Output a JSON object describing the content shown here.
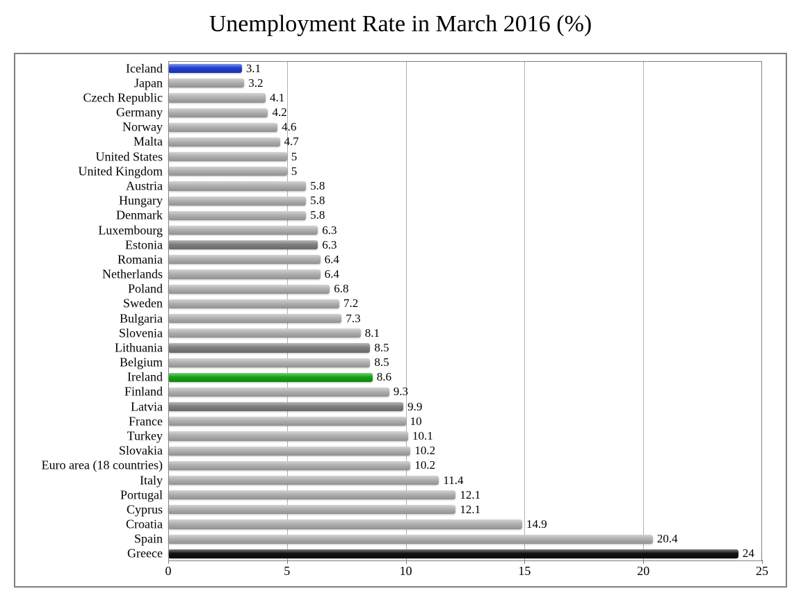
{
  "chart": {
    "type": "bar-horizontal",
    "title": "Unemployment Rate in March 2016 (%)",
    "title_fontsize": 34,
    "font_family": "Georgia, 'Times New Roman', serif",
    "background_color": "#ffffff",
    "outer_border_color": "#7f7f7f",
    "plot_border_color": "#7f7f7f",
    "grid_color": "#b0b0b0",
    "ylabel_fontsize": 18,
    "value_label_fontsize": 17,
    "xtick_fontsize": 18,
    "x": {
      "min": 0,
      "max": 25,
      "tick_step": 5,
      "ticks": [
        0,
        5,
        10,
        15,
        20,
        25
      ]
    },
    "bars": [
      {
        "label": "Iceland",
        "value": 3.1,
        "color": "#1f3fd0"
      },
      {
        "label": "Japan",
        "value": 3.2,
        "color": "#b0b0b0"
      },
      {
        "label": "Czech Republic",
        "value": 4.1,
        "color": "#b0b0b0"
      },
      {
        "label": "Germany",
        "value": 4.2,
        "color": "#b0b0b0"
      },
      {
        "label": "Norway",
        "value": 4.6,
        "color": "#b0b0b0"
      },
      {
        "label": "Malta",
        "value": 4.7,
        "color": "#b0b0b0"
      },
      {
        "label": "United States",
        "value": 5,
        "color": "#b0b0b0"
      },
      {
        "label": "United Kingdom",
        "value": 5,
        "color": "#b0b0b0"
      },
      {
        "label": "Austria",
        "value": 5.8,
        "color": "#b0b0b0"
      },
      {
        "label": "Hungary",
        "value": 5.8,
        "color": "#b0b0b0"
      },
      {
        "label": "Denmark",
        "value": 5.8,
        "color": "#b0b0b0"
      },
      {
        "label": "Luxembourg",
        "value": 6.3,
        "color": "#b0b0b0"
      },
      {
        "label": "Estonia",
        "value": 6.3,
        "color": "#7f7f7f"
      },
      {
        "label": "Romania",
        "value": 6.4,
        "color": "#b0b0b0"
      },
      {
        "label": "Netherlands",
        "value": 6.4,
        "color": "#b0b0b0"
      },
      {
        "label": "Poland",
        "value": 6.8,
        "color": "#b0b0b0"
      },
      {
        "label": "Sweden",
        "value": 7.2,
        "color": "#b0b0b0"
      },
      {
        "label": "Bulgaria",
        "value": 7.3,
        "color": "#b0b0b0"
      },
      {
        "label": "Slovenia",
        "value": 8.1,
        "color": "#b0b0b0"
      },
      {
        "label": "Lithuania",
        "value": 8.5,
        "color": "#7f7f7f"
      },
      {
        "label": "Belgium",
        "value": 8.5,
        "color": "#b0b0b0"
      },
      {
        "label": "Ireland",
        "value": 8.6,
        "color": "#13a313"
      },
      {
        "label": "Finland",
        "value": 9.3,
        "color": "#b0b0b0"
      },
      {
        "label": "Latvia",
        "value": 9.9,
        "color": "#7f7f7f"
      },
      {
        "label": "France",
        "value": 10,
        "color": "#b0b0b0"
      },
      {
        "label": "Turkey",
        "value": 10.1,
        "color": "#b0b0b0"
      },
      {
        "label": "Slovakia",
        "value": 10.2,
        "color": "#b0b0b0"
      },
      {
        "label": "Euro area (18 countries)",
        "value": 10.2,
        "color": "#b0b0b0"
      },
      {
        "label": "Italy",
        "value": 11.4,
        "color": "#b0b0b0"
      },
      {
        "label": "Portugal",
        "value": 12.1,
        "color": "#b0b0b0"
      },
      {
        "label": "Cyprus",
        "value": 12.1,
        "color": "#b0b0b0"
      },
      {
        "label": "Croatia",
        "value": 14.9,
        "color": "#b0b0b0"
      },
      {
        "label": "Spain",
        "value": 20.4,
        "color": "#b0b0b0"
      },
      {
        "label": "Greece",
        "value": 24,
        "color": "#111111"
      }
    ],
    "bar_height_ratio": 0.62,
    "bar_shadow_color": "rgba(0,0,0,0.25)",
    "bar_gloss": true
  }
}
